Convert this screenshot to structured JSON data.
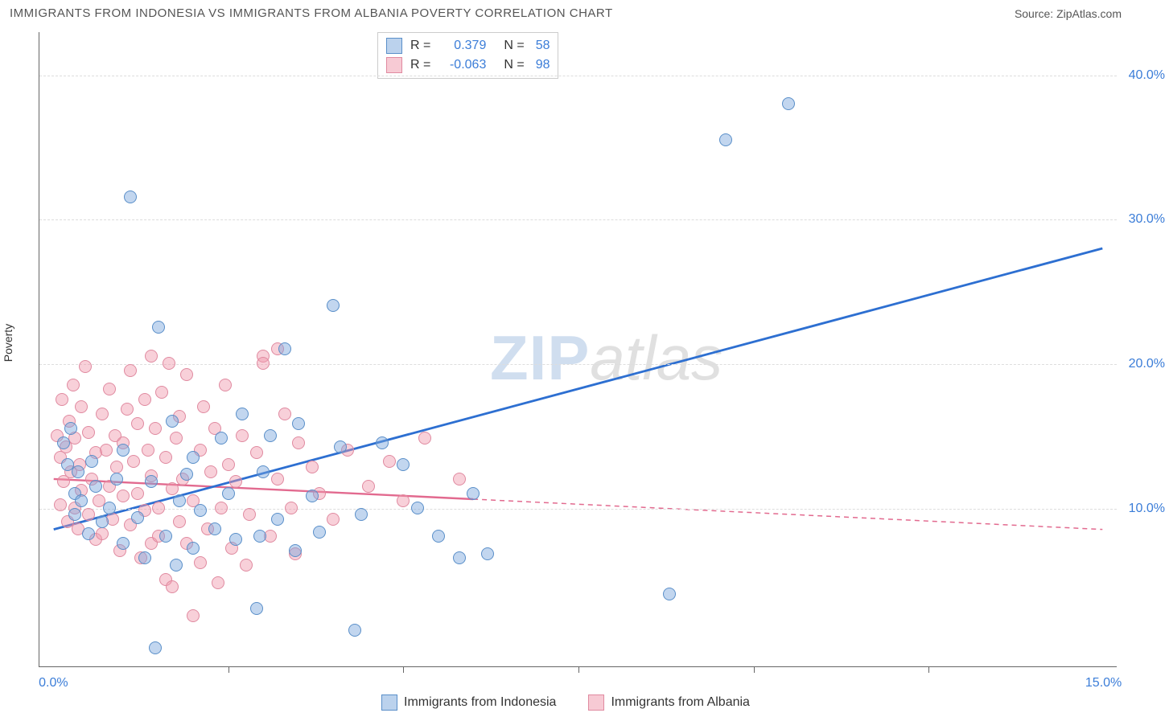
{
  "title": "IMMIGRANTS FROM INDONESIA VS IMMIGRANTS FROM ALBANIA POVERTY CORRELATION CHART",
  "source": "Source: ZipAtlas.com",
  "ylabel": "Poverty",
  "watermark_zip": "ZIP",
  "watermark_atlas": "atlas",
  "colors": {
    "series_a_fill": "rgba(120,165,220,0.45)",
    "series_a_stroke": "#5a8fc9",
    "series_b_fill": "rgba(240,150,170,0.45)",
    "series_b_stroke": "#e08aa0",
    "trend_a": "#2d6fd1",
    "trend_b": "#e26a8f",
    "axis_label": "#3b7dd8",
    "grid": "#dddddd",
    "text": "#555555"
  },
  "axes": {
    "xlim": [
      -0.2,
      15.2
    ],
    "ylim": [
      -1,
      43
    ],
    "xticks": [
      0.0,
      15.0
    ],
    "xtick_labels": [
      "0.0%",
      "15.0%"
    ],
    "xtick_minor": [
      2.5,
      5.0,
      7.5,
      10.0,
      12.5
    ],
    "yticks": [
      10.0,
      20.0,
      30.0,
      40.0
    ],
    "ytick_labels": [
      "10.0%",
      "20.0%",
      "30.0%",
      "40.0%"
    ]
  },
  "legend_corr": [
    {
      "swatch_fill": "rgba(120,165,220,0.5)",
      "swatch_border": "#5a8fc9",
      "r_label": "R =",
      "r_val": "0.379",
      "n_label": "N =",
      "n_val": "58"
    },
    {
      "swatch_fill": "rgba(240,150,170,0.5)",
      "swatch_border": "#e08aa0",
      "r_label": "R =",
      "r_val": "-0.063",
      "n_label": "N =",
      "n_val": "98"
    }
  ],
  "bottom_legend": [
    {
      "swatch_fill": "rgba(120,165,220,0.5)",
      "swatch_border": "#5a8fc9",
      "label": "Immigrants from Indonesia"
    },
    {
      "swatch_fill": "rgba(240,150,170,0.5)",
      "swatch_border": "#e08aa0",
      "label": "Immigrants from Albania"
    }
  ],
  "trend_lines": {
    "a": {
      "x1": 0.0,
      "y1": 8.5,
      "x2": 15.0,
      "y2": 28.0,
      "solid_until_x": 15.0,
      "color": "#2d6fd1"
    },
    "b": {
      "x1": 0.0,
      "y1": 12.0,
      "x2": 15.0,
      "y2": 8.5,
      "solid_until_x": 6.0,
      "color": "#e26a8f"
    }
  },
  "series_a": [
    [
      0.15,
      14.5
    ],
    [
      0.2,
      13.0
    ],
    [
      0.25,
      15.5
    ],
    [
      0.3,
      11.0
    ],
    [
      0.3,
      9.5
    ],
    [
      0.35,
      12.5
    ],
    [
      0.4,
      10.5
    ],
    [
      0.5,
      8.2
    ],
    [
      0.55,
      13.2
    ],
    [
      0.6,
      11.5
    ],
    [
      0.7,
      9.0
    ],
    [
      0.8,
      10.0
    ],
    [
      0.9,
      12.0
    ],
    [
      1.0,
      7.5
    ],
    [
      1.0,
      14.0
    ],
    [
      1.1,
      31.5
    ],
    [
      1.2,
      9.3
    ],
    [
      1.3,
      6.5
    ],
    [
      1.4,
      11.8
    ],
    [
      1.45,
      0.3
    ],
    [
      1.5,
      22.5
    ],
    [
      1.6,
      8.0
    ],
    [
      1.7,
      16.0
    ],
    [
      1.75,
      6.0
    ],
    [
      1.8,
      10.5
    ],
    [
      1.9,
      12.3
    ],
    [
      2.0,
      13.5
    ],
    [
      2.0,
      7.2
    ],
    [
      2.1,
      9.8
    ],
    [
      2.3,
      8.5
    ],
    [
      2.4,
      14.8
    ],
    [
      2.5,
      11.0
    ],
    [
      2.6,
      7.8
    ],
    [
      2.7,
      16.5
    ],
    [
      2.9,
      3.0
    ],
    [
      2.95,
      8.0
    ],
    [
      3.0,
      12.5
    ],
    [
      3.1,
      15.0
    ],
    [
      3.2,
      9.2
    ],
    [
      3.3,
      21.0
    ],
    [
      3.5,
      15.8
    ],
    [
      3.7,
      10.8
    ],
    [
      3.8,
      8.3
    ],
    [
      4.0,
      24.0
    ],
    [
      4.1,
      14.2
    ],
    [
      4.3,
      1.5
    ],
    [
      4.4,
      9.5
    ],
    [
      4.7,
      14.5
    ],
    [
      5.0,
      13.0
    ],
    [
      5.2,
      10.0
    ],
    [
      5.5,
      8.0
    ],
    [
      5.8,
      6.5
    ],
    [
      6.0,
      11.0
    ],
    [
      6.2,
      6.8
    ],
    [
      8.8,
      4.0
    ],
    [
      9.6,
      35.5
    ],
    [
      10.5,
      38.0
    ],
    [
      3.45,
      7.0
    ]
  ],
  "series_b": [
    [
      0.05,
      15.0
    ],
    [
      0.1,
      10.2
    ],
    [
      0.1,
      13.5
    ],
    [
      0.12,
      17.5
    ],
    [
      0.15,
      11.8
    ],
    [
      0.18,
      14.2
    ],
    [
      0.2,
      9.0
    ],
    [
      0.22,
      16.0
    ],
    [
      0.25,
      12.5
    ],
    [
      0.28,
      18.5
    ],
    [
      0.3,
      10.0
    ],
    [
      0.3,
      14.8
    ],
    [
      0.35,
      8.5
    ],
    [
      0.38,
      13.0
    ],
    [
      0.4,
      17.0
    ],
    [
      0.4,
      11.2
    ],
    [
      0.45,
      19.8
    ],
    [
      0.5,
      9.5
    ],
    [
      0.5,
      15.2
    ],
    [
      0.55,
      12.0
    ],
    [
      0.6,
      7.8
    ],
    [
      0.6,
      13.8
    ],
    [
      0.65,
      10.5
    ],
    [
      0.7,
      16.5
    ],
    [
      0.7,
      8.2
    ],
    [
      0.75,
      14.0
    ],
    [
      0.8,
      11.5
    ],
    [
      0.8,
      18.2
    ],
    [
      0.85,
      9.2
    ],
    [
      0.88,
      15.0
    ],
    [
      0.9,
      12.8
    ],
    [
      0.95,
      7.0
    ],
    [
      1.0,
      14.5
    ],
    [
      1.0,
      10.8
    ],
    [
      1.05,
      16.8
    ],
    [
      1.1,
      8.8
    ],
    [
      1.1,
      19.5
    ],
    [
      1.15,
      13.2
    ],
    [
      1.2,
      11.0
    ],
    [
      1.2,
      15.8
    ],
    [
      1.25,
      6.5
    ],
    [
      1.3,
      9.8
    ],
    [
      1.3,
      17.5
    ],
    [
      1.35,
      14.0
    ],
    [
      1.4,
      20.5
    ],
    [
      1.4,
      7.5
    ],
    [
      1.4,
      12.2
    ],
    [
      1.45,
      15.5
    ],
    [
      1.5,
      10.0
    ],
    [
      1.5,
      8.0
    ],
    [
      1.55,
      18.0
    ],
    [
      1.6,
      5.0
    ],
    [
      1.6,
      13.5
    ],
    [
      1.65,
      20.0
    ],
    [
      1.7,
      11.3
    ],
    [
      1.7,
      4.5
    ],
    [
      1.75,
      14.8
    ],
    [
      1.8,
      9.0
    ],
    [
      1.8,
      16.3
    ],
    [
      1.85,
      12.0
    ],
    [
      1.9,
      7.5
    ],
    [
      1.9,
      19.2
    ],
    [
      2.0,
      10.5
    ],
    [
      2.0,
      2.5
    ],
    [
      2.1,
      14.0
    ],
    [
      2.1,
      6.2
    ],
    [
      2.15,
      17.0
    ],
    [
      2.2,
      8.5
    ],
    [
      2.25,
      12.5
    ],
    [
      2.3,
      15.5
    ],
    [
      2.35,
      4.8
    ],
    [
      2.4,
      10.0
    ],
    [
      2.45,
      18.5
    ],
    [
      2.5,
      13.0
    ],
    [
      2.55,
      7.2
    ],
    [
      2.6,
      11.8
    ],
    [
      2.7,
      15.0
    ],
    [
      2.75,
      6.0
    ],
    [
      2.8,
      9.5
    ],
    [
      2.9,
      13.8
    ],
    [
      3.0,
      20.5
    ],
    [
      3.0,
      20.0
    ],
    [
      3.1,
      8.0
    ],
    [
      3.2,
      21.0
    ],
    [
      3.2,
      12.0
    ],
    [
      3.3,
      16.5
    ],
    [
      3.4,
      10.0
    ],
    [
      3.5,
      14.5
    ],
    [
      3.45,
      6.8
    ],
    [
      3.7,
      12.8
    ],
    [
      3.8,
      11.0
    ],
    [
      4.0,
      9.2
    ],
    [
      4.2,
      14.0
    ],
    [
      4.5,
      11.5
    ],
    [
      4.8,
      13.2
    ],
    [
      5.0,
      10.5
    ],
    [
      5.3,
      14.8
    ],
    [
      5.8,
      12.0
    ]
  ]
}
